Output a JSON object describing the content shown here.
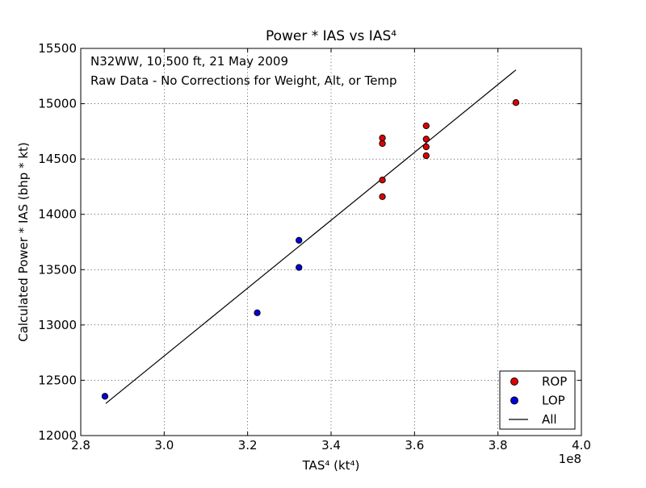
{
  "chart_data": {
    "type": "scatter",
    "title": "Power * IAS vs IAS⁴",
    "xlabel": "TAS⁴ (kt⁴)",
    "ylabel": "Calculated Power * IAS (bhp * kt)",
    "x_offset_label": "1e8",
    "annotations": [
      "N32WW, 10,500 ft, 21 May 2009",
      "Raw Data - No Corrections for Weight, Alt, or Temp"
    ],
    "xlim": [
      280000000,
      400000000
    ],
    "ylim": [
      12000,
      15500
    ],
    "x_ticks": [
      280000000,
      300000000,
      320000000,
      340000000,
      360000000,
      380000000,
      400000000
    ],
    "x_tick_labels": [
      "2.8",
      "3.0",
      "3.2",
      "3.4",
      "3.6",
      "3.8",
      "4.0"
    ],
    "y_ticks": [
      12000,
      12500,
      13000,
      13500,
      14000,
      14500,
      15000,
      15500
    ],
    "y_tick_labels": [
      "12000",
      "12500",
      "13000",
      "13500",
      "14000",
      "14500",
      "15000",
      "15500"
    ],
    "grid": true,
    "legend_position": "bottom-right",
    "series": [
      {
        "name": "ROP",
        "kind": "scatter",
        "color": "#dd0000",
        "points": [
          [
            352300000,
            14690
          ],
          [
            352300000,
            14640
          ],
          [
            352300000,
            14310
          ],
          [
            352300000,
            14160
          ],
          [
            362800000,
            14800
          ],
          [
            362800000,
            14680
          ],
          [
            362800000,
            14610
          ],
          [
            362800000,
            14530
          ],
          [
            384300000,
            15010
          ]
        ]
      },
      {
        "name": "LOP",
        "kind": "scatter",
        "color": "#0000dd",
        "points": [
          [
            285800000,
            12355
          ],
          [
            322300000,
            13110
          ],
          [
            332300000,
            13765
          ],
          [
            332300000,
            13520
          ]
        ]
      },
      {
        "name": "All",
        "kind": "line",
        "color": "#000000",
        "points": [
          [
            286000000,
            12290
          ],
          [
            384300000,
            15305
          ]
        ]
      }
    ]
  }
}
